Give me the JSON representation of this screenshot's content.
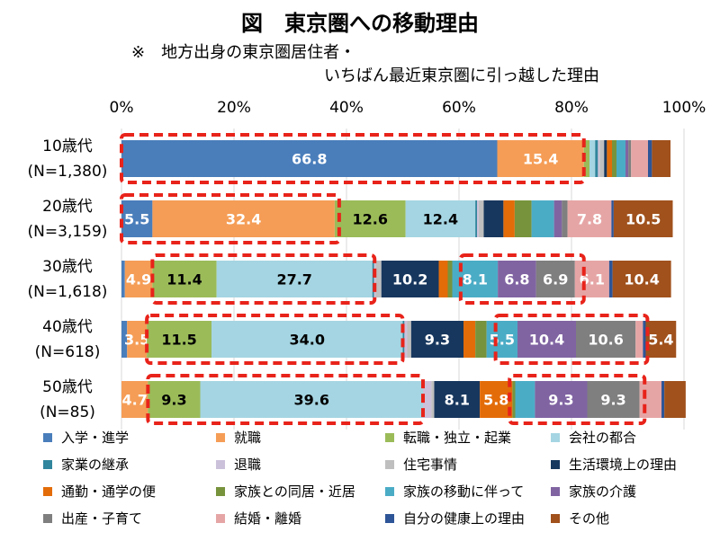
{
  "title": "図　東京圏への移動理由",
  "note_line1": "※　地方出身の東京圏居住者・",
  "note_line2": "いちばん最近東京圏に引っ越した理由",
  "chart_data": {
    "type": "bar",
    "orientation": "horizontal",
    "stacked": true,
    "xlim": [
      0,
      100
    ],
    "x_ticks": [
      "0%",
      "20%",
      "40%",
      "60%",
      "80%",
      "100%"
    ],
    "grid": "vertical",
    "legend_position": "bottom",
    "categories": [
      {
        "label": "10歳代",
        "n": "(N=1,380)"
      },
      {
        "label": "20歳代",
        "n": "(N=3,159)"
      },
      {
        "label": "30歳代",
        "n": "(N=1,618)"
      },
      {
        "label": "40歳代",
        "n": "(N=618)"
      },
      {
        "label": "50歳代",
        "n": "(N=85)"
      }
    ],
    "series": [
      {
        "name": "入学・進学",
        "color": "#4a7ebb",
        "values": [
          66.8,
          5.5,
          0.6,
          1.0,
          0.0
        ],
        "labels": [
          "66.8",
          "5.5",
          "",
          "",
          ""
        ]
      },
      {
        "name": "就職",
        "color": "#f59d56",
        "values": [
          15.4,
          32.4,
          4.9,
          3.5,
          4.7
        ],
        "labels": [
          "15.4",
          "32.4",
          "4.9",
          "3.5",
          "4.7"
        ]
      },
      {
        "name": "転職・独立・起業",
        "color": "#9bbb59",
        "values": [
          1.0,
          12.6,
          11.4,
          11.5,
          9.3
        ],
        "labels": [
          "",
          "12.6",
          "11.4",
          "11.5",
          "9.3"
        ]
      },
      {
        "name": "会社の都合",
        "color": "#a5d5e2",
        "values": [
          1.0,
          12.4,
          27.7,
          34.0,
          39.6
        ],
        "labels": [
          "",
          "12.4",
          "27.7",
          "34.0",
          "39.6"
        ]
      },
      {
        "name": "家業の継承",
        "color": "#31859c",
        "values": [
          0.5,
          0.3,
          0.3,
          0.3,
          0.0
        ],
        "labels": [
          "",
          "",
          "",
          "",
          ""
        ]
      },
      {
        "name": "退職",
        "color": "#ccc1da",
        "values": [
          0.3,
          0.3,
          0.3,
          0.5,
          1.5
        ],
        "labels": [
          "",
          "",
          "",
          "",
          ""
        ]
      },
      {
        "name": "住宅事情",
        "color": "#bfbfbf",
        "values": [
          0.8,
          0.9,
          1.0,
          0.7,
          0.5
        ],
        "labels": [
          "",
          "",
          "",
          "",
          ""
        ]
      },
      {
        "name": "生活環境上の理由",
        "color": "#17375e",
        "values": [
          0.5,
          3.5,
          10.2,
          9.3,
          8.1
        ],
        "labels": [
          "",
          "",
          "10.2",
          "9.3",
          "8.1"
        ]
      },
      {
        "name": "通勤・通学の便",
        "color": "#e36c09",
        "values": [
          0.9,
          2.0,
          1.6,
          2.1,
          5.8
        ],
        "labels": [
          "",
          "",
          "",
          "",
          "5.8"
        ]
      },
      {
        "name": "家族との同居・近居",
        "color": "#77933c",
        "values": [
          0.8,
          3.0,
          0.8,
          2.0,
          0.5
        ],
        "labels": [
          "",
          "",
          "",
          "",
          ""
        ]
      },
      {
        "name": "家族の移動に伴って",
        "color": "#4bacc6",
        "values": [
          1.6,
          4.0,
          8.1,
          5.5,
          3.5
        ],
        "labels": [
          "",
          "",
          "8.1",
          "5.5",
          ""
        ]
      },
      {
        "name": "家族の介護",
        "color": "#8064a2",
        "values": [
          0.5,
          1.4,
          6.8,
          10.4,
          9.3
        ],
        "labels": [
          "",
          "",
          "6.8",
          "10.4",
          "9.3"
        ]
      },
      {
        "name": "出産・子育て",
        "color": "#7f7f7f",
        "values": [
          0.5,
          1.0,
          6.9,
          10.6,
          9.3
        ],
        "labels": [
          "",
          "",
          "6.9",
          "10.6",
          "9.3"
        ]
      },
      {
        "name": "結婚・離婚",
        "color": "#e6a5a5",
        "values": [
          3.0,
          7.8,
          6.1,
          1.3,
          3.9
        ],
        "labels": [
          "",
          "7.8",
          "6.1",
          "",
          ""
        ]
      },
      {
        "name": "自分の健康上の理由",
        "color": "#2e5597",
        "values": [
          0.7,
          0.4,
          0.6,
          0.5,
          0.5
        ],
        "labels": [
          "",
          "",
          "",
          "",
          ""
        ]
      },
      {
        "name": "その他",
        "color": "#a0511c",
        "values": [
          3.3,
          10.5,
          10.4,
          5.4,
          3.8
        ],
        "labels": [
          "",
          "10.5",
          "10.4",
          "5.4",
          ""
        ]
      }
    ],
    "highlight_boxes": [
      {
        "category": 0,
        "from": 0,
        "to": 82.2
      },
      {
        "category": 1,
        "from": 0,
        "to": 38.7
      },
      {
        "category": 2,
        "from": 5.5,
        "to": 45.0
      },
      {
        "category": 2,
        "from": 60.3,
        "to": 82.2
      },
      {
        "category": 3,
        "from": 4.5,
        "to": 50.0
      },
      {
        "category": 3,
        "from": 66.5,
        "to": 93.5
      },
      {
        "category": 4,
        "from": 4.7,
        "to": 53.6
      },
      {
        "category": 4,
        "from": 69.0,
        "to": 93.0
      }
    ]
  }
}
